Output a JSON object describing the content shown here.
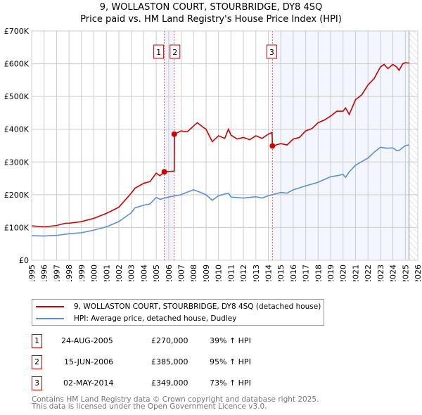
{
  "chart_data": {
    "type": "line",
    "title": "9, WOLLASTON COURT, STOURBRIDGE, DY8 4SQ",
    "subtitle": "Price paid vs. HM Land Registry's House Price Index (HPI)",
    "xlabel": "",
    "ylabel": "",
    "xlim": [
      1995,
      2026
    ],
    "ylim": [
      0,
      700000
    ],
    "y_ticks": [
      "£0",
      "£100K",
      "£200K",
      "£300K",
      "£400K",
      "£500K",
      "£600K",
      "£700K"
    ],
    "x_ticks": [
      "1995",
      "1996",
      "1997",
      "1998",
      "1999",
      "2000",
      "2001",
      "2002",
      "2003",
      "2004",
      "2005",
      "2006",
      "2007",
      "2008",
      "2009",
      "2010",
      "2011",
      "2012",
      "2013",
      "2014",
      "2015",
      "2016",
      "2017",
      "2018",
      "2019",
      "2020",
      "2021",
      "2022",
      "2023",
      "2024",
      "2025",
      "2026"
    ],
    "grid": true,
    "series": [
      {
        "name": "9, WOLLASTON COURT, STOURBRIDGE, DY8 4SQ (detached house)",
        "color": "#cc0000",
        "x": [
          1995,
          1996,
          1997,
          1997.7,
          1998,
          1999,
          2000,
          2001,
          2002,
          2003,
          2003.3,
          2004,
          2004.5,
          2005,
          2005.3,
          2005.65,
          2006,
          2006.45,
          2006.47,
          2007,
          2007.5,
          2008,
          2008.3,
          2008.8,
          2009,
          2009.5,
          2010,
          2010.5,
          2010.8,
          2011,
          2011.5,
          2012,
          2012.5,
          2013,
          2013.5,
          2014,
          2014.3,
          2014.33,
          2015,
          2015.5,
          2016,
          2016.5,
          2017,
          2017.5,
          2018,
          2018.5,
          2019,
          2019.5,
          2020,
          2020.2,
          2020.5,
          2021,
          2021.5,
          2022,
          2022.5,
          2023,
          2023.3,
          2023.6,
          2024,
          2024.3,
          2024.5,
          2024.8,
          2025,
          2025.3
        ],
        "y": [
          105000,
          102000,
          106000,
          113000,
          113000,
          118000,
          128000,
          143000,
          162000,
          205000,
          220000,
          235000,
          240000,
          266000,
          258000,
          270000,
          271000,
          272000,
          385000,
          395000,
          392000,
          410000,
          420000,
          405000,
          400000,
          362000,
          380000,
          372000,
          400000,
          382000,
          370000,
          375000,
          368000,
          380000,
          372000,
          385000,
          390000,
          349000,
          356000,
          352000,
          370000,
          375000,
          395000,
          402000,
          420000,
          428000,
          440000,
          455000,
          455000,
          465000,
          445000,
          490000,
          505000,
          535000,
          555000,
          590000,
          598000,
          585000,
          598000,
          590000,
          580000,
          600000,
          603000,
          602000
        ]
      },
      {
        "name": "HPI: Average price, detached house, Dudley",
        "color": "#5b8fd4",
        "x": [
          1995,
          1996,
          1997,
          1998,
          1999,
          2000,
          2001,
          2002,
          2003,
          2003.3,
          2004,
          2004.5,
          2005,
          2005.3,
          2006,
          2007,
          2007.3,
          2008,
          2008.5,
          2009,
          2009.5,
          2010,
          2010.8,
          2011,
          2012,
          2013,
          2013.5,
          2014,
          2015,
          2015.5,
          2016,
          2017,
          2018,
          2019,
          2019.5,
          2020,
          2020.2,
          2020.5,
          2021,
          2022,
          2022.5,
          2023,
          2023.5,
          2024,
          2024.3,
          2024.5,
          2025,
          2025.3
        ],
        "y": [
          75000,
          74000,
          76000,
          81000,
          84000,
          92000,
          102000,
          118000,
          145000,
          160000,
          168000,
          172000,
          192000,
          186000,
          193000,
          200000,
          205000,
          215000,
          208000,
          200000,
          183000,
          197000,
          205000,
          193000,
          190000,
          194000,
          190000,
          197000,
          207000,
          205000,
          215000,
          227000,
          238000,
          255000,
          258000,
          262000,
          253000,
          270000,
          290000,
          312000,
          330000,
          345000,
          342000,
          343000,
          335000,
          335000,
          350000,
          352000
        ]
      }
    ],
    "sales": [
      {
        "label": "1",
        "x": 2005.65,
        "y": 270000
      },
      {
        "label": "2",
        "x": 2006.45,
        "y": 385000
      },
      {
        "label": "3",
        "x": 2014.33,
        "y": 349000
      }
    ],
    "forecast_start": 2025.3
  },
  "legend": {
    "property": "9, WOLLASTON COURT, STOURBRIDGE, DY8 4SQ (detached house)",
    "hpi": "HPI: Average price, detached house, Dudley"
  },
  "sales_table": [
    {
      "num": "1",
      "date": "24-AUG-2005",
      "price": "£270,000",
      "hpi": "39% ↑ HPI"
    },
    {
      "num": "2",
      "date": "15-JUN-2006",
      "price": "£385,000",
      "hpi": "95% ↑ HPI"
    },
    {
      "num": "3",
      "date": "02-MAY-2014",
      "price": "£349,000",
      "hpi": "73% ↑ HPI"
    }
  ],
  "footer": {
    "line1": "Contains HM Land Registry data © Crown copyright and database right 2025.",
    "line2": "This data is licensed under the Open Government Licence v3.0."
  }
}
